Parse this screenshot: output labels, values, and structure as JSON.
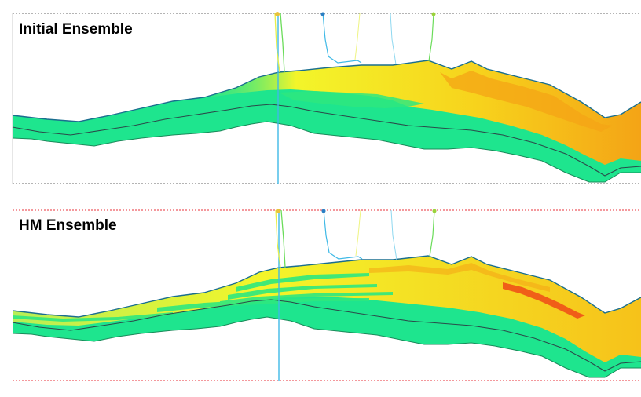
{
  "panels": [
    {
      "title": "Initial Ensemble"
    },
    {
      "title": "HM Ensemble"
    }
  ],
  "colors": {
    "background": "#ffffff",
    "base_layer": "#1ee58e",
    "yellow": "#f3f52a",
    "orange": "#f4a416",
    "red_streak": "#ee4a18",
    "horizon_line": "#2b4a4a",
    "top_outline": "#1a6e8f",
    "well_trajectory": "#3fb9e6",
    "well_yellow": "#e7ef4a",
    "well_green": "#6bdc5a",
    "well_marker": "#2a7fc4",
    "panel_border_top": "#6a6a6a",
    "panel_border_red": "#e8323a"
  }
}
